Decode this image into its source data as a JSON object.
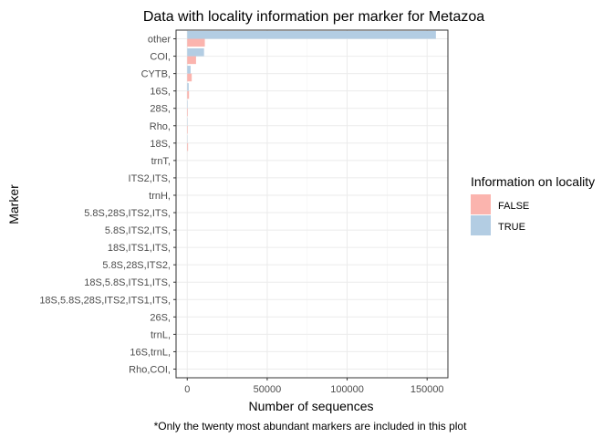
{
  "chart_data": {
    "type": "bar",
    "orientation": "horizontal",
    "title": "Data with locality information per marker for Metazoa",
    "xlabel": "Number of sequences",
    "ylabel": "Marker",
    "caption": "*Only the twenty most abundant markers are included in this plot",
    "xlim": [
      -7000,
      163000
    ],
    "xticks": [
      0,
      50000,
      100000,
      150000
    ],
    "xtick_labels": [
      "0",
      "50000",
      "100000",
      "150000"
    ],
    "grid": true,
    "legend": {
      "title": "Information on locality",
      "position": "right",
      "entries": [
        {
          "name": "FALSE",
          "color": "#FBB4AE"
        },
        {
          "name": "TRUE",
          "color": "#B3CDE3"
        }
      ]
    },
    "categories": [
      "other",
      "COI,",
      "CYTB,",
      "16S,",
      "28S,",
      "Rho,",
      "18S,",
      "trnT,",
      "ITS2,ITS,",
      "trnH,",
      "5.8S,28S,ITS2,ITS,",
      "5.8S,ITS2,ITS,",
      "18S,ITS1,ITS,",
      "5.8S,28S,ITS2,",
      "18S,5.8S,ITS1,ITS,",
      "18S,5.8S,28S,ITS2,ITS1,ITS,",
      "26S,",
      "trnL,",
      "16S,trnL,",
      "Rho,COI,"
    ],
    "series": [
      {
        "name": "FALSE",
        "color": "#FBB4AE",
        "values": [
          11000,
          5500,
          2800,
          1100,
          350,
          300,
          500,
          0,
          0,
          0,
          0,
          0,
          0,
          0,
          0,
          0,
          0,
          0,
          0,
          0
        ]
      },
      {
        "name": "TRUE",
        "color": "#B3CDE3",
        "values": [
          155500,
          10500,
          2100,
          900,
          250,
          200,
          150,
          0,
          0,
          0,
          0,
          0,
          0,
          0,
          0,
          0,
          0,
          0,
          0,
          0
        ]
      }
    ]
  }
}
